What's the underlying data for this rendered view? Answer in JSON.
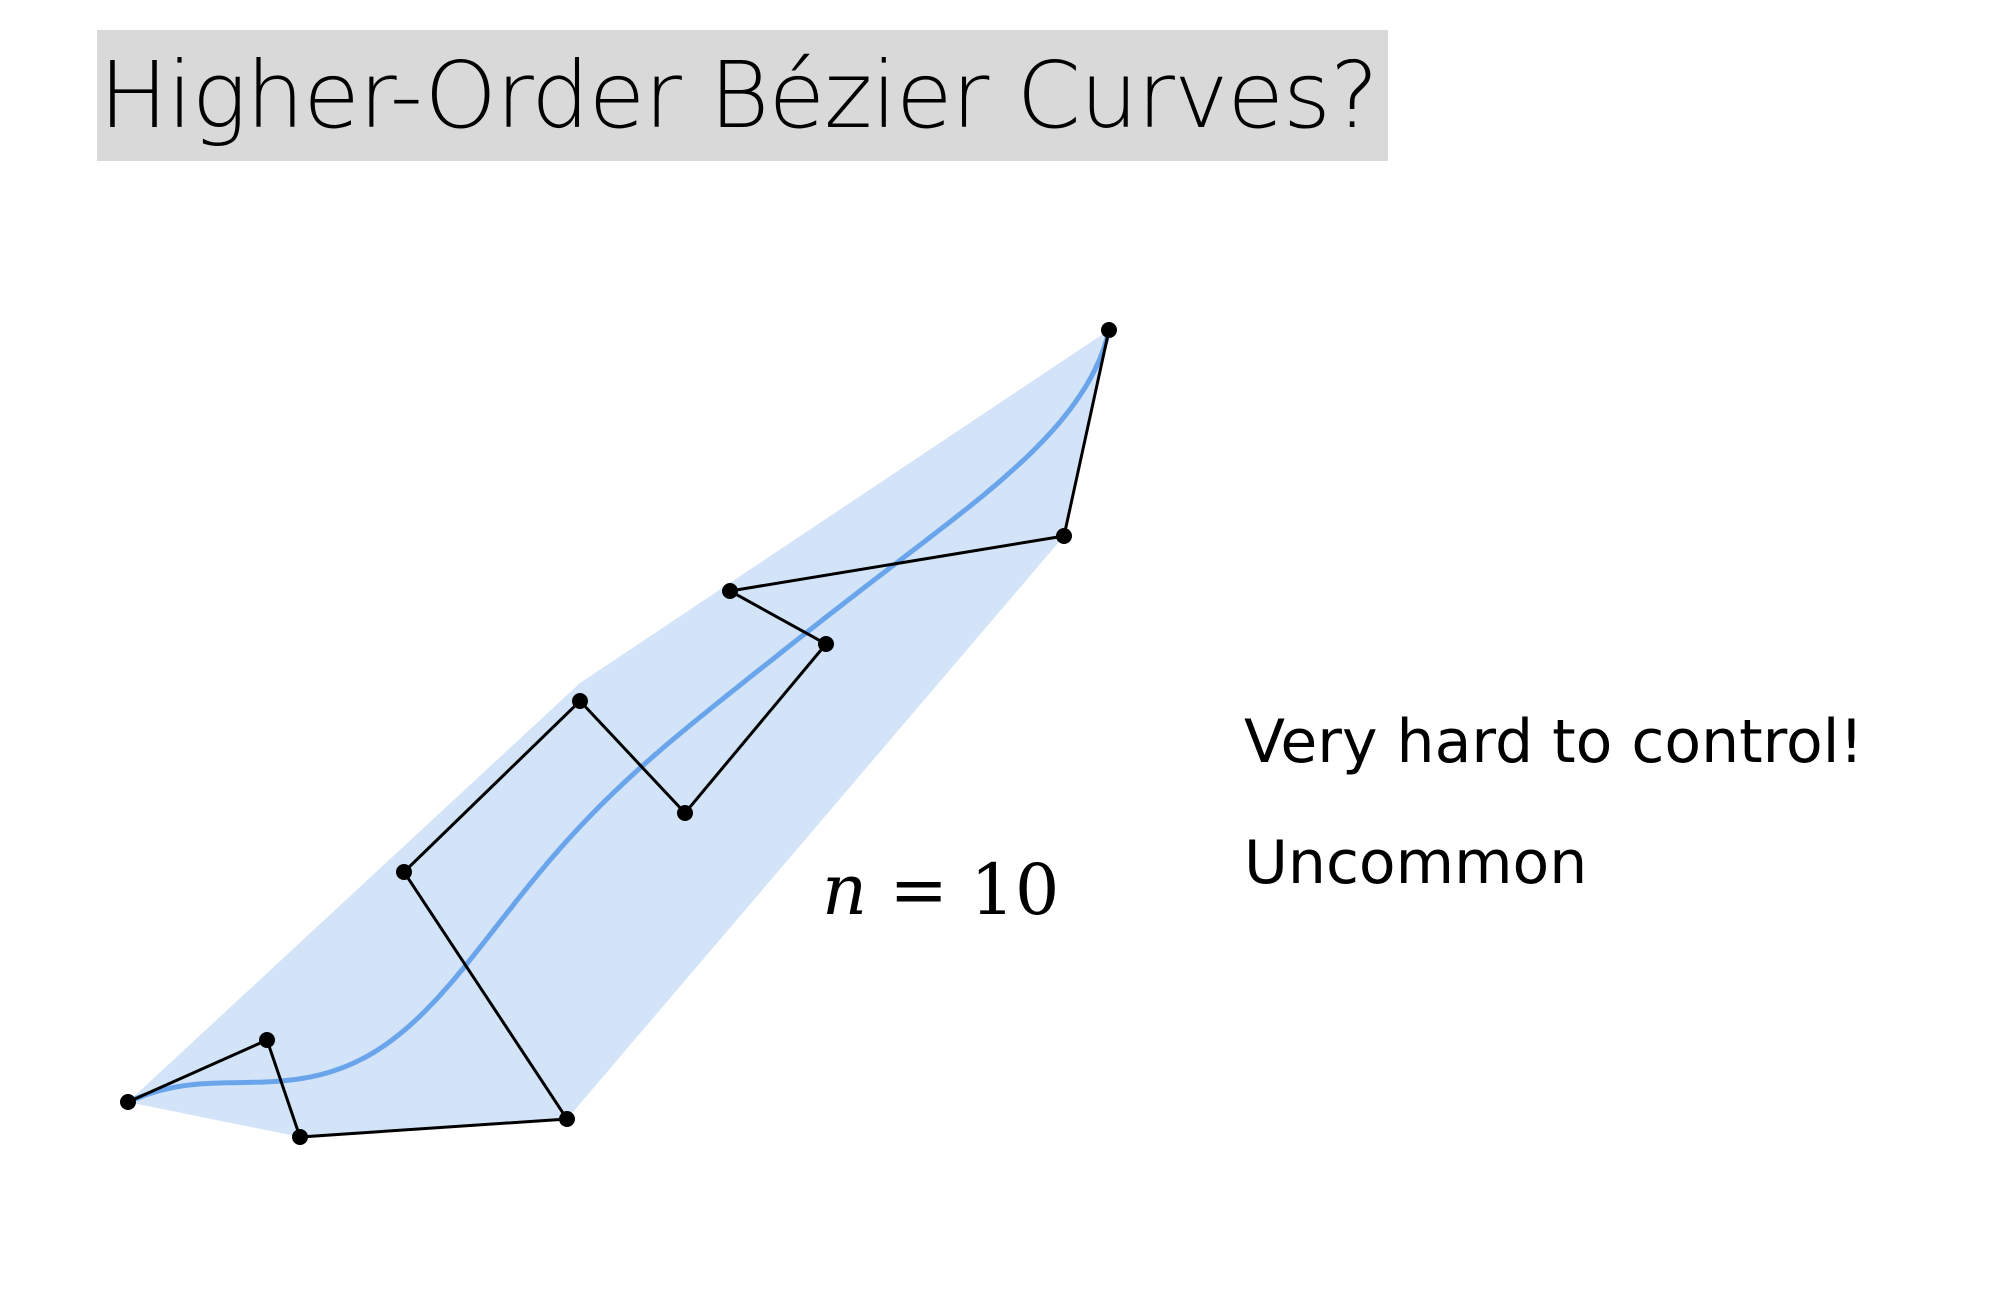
{
  "slide": {
    "title": "Higher-Order Bézier Curves?",
    "notes": [
      "Very hard to control!",
      "Uncommon"
    ]
  },
  "diagram": {
    "label": {
      "variable": "n",
      "operator": "=",
      "value": "10"
    },
    "colors": {
      "hull_fill": "#d3e4f9",
      "curve": "#6aa5ec",
      "polygon": "#000000",
      "title_background": "#d9d9d9"
    }
  }
}
